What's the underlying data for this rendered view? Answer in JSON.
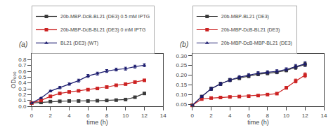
{
  "chart_data": [
    {
      "type": "line",
      "title": "(a)",
      "xlabel": "time (h)",
      "ylabel": "OD₆₀₀",
      "x": [
        0,
        1,
        2,
        3,
        4,
        5,
        6,
        7,
        8,
        9,
        10,
        11,
        12
      ],
      "xlim": [
        0,
        14
      ],
      "xticks": [
        0,
        2,
        4,
        6,
        8,
        10,
        12,
        14
      ],
      "ylim": [
        0,
        0.9
      ],
      "yticks": [
        {
          "value": 0,
          "label": "0.0"
        },
        0.1,
        0.2,
        0.3,
        0.4,
        0.5,
        0.6,
        0.7,
        0.8
      ],
      "grid": false,
      "legend": "upper left",
      "series": [
        {
          "name": "20b-MBP-DcB-BL21 (DE3) 0.5 mM IPTG",
          "color": "#3a3a3a",
          "marker": "square",
          "values": [
            0.055,
            0.065,
            0.08,
            0.085,
            0.09,
            0.09,
            0.09,
            0.095,
            0.1,
            0.105,
            0.115,
            0.155,
            0.22
          ],
          "error": [
            0.005,
            0.005,
            0.005,
            0.005,
            0.005,
            0.005,
            0.005,
            0.005,
            0.005,
            0.005,
            0.005,
            0.01,
            0.015
          ]
        },
        {
          "name": "20b-MBP-DcB-BL21 (DE3) 0 mM IPTG",
          "color": "#cc2222",
          "marker": "square",
          "values": [
            0.055,
            0.1,
            0.17,
            0.22,
            0.245,
            0.265,
            0.285,
            0.305,
            0.33,
            0.36,
            0.38,
            0.415,
            0.445
          ],
          "error": [
            0.005,
            0.008,
            0.01,
            0.012,
            0.012,
            0.012,
            0.012,
            0.012,
            0.015,
            0.015,
            0.015,
            0.015,
            0.015
          ]
        },
        {
          "name": "BL21 (DE3) (WT)",
          "color": "#1a1a6e",
          "marker": "triangle",
          "values": [
            0.055,
            0.14,
            0.26,
            0.32,
            0.38,
            0.44,
            0.52,
            0.56,
            0.605,
            0.63,
            0.645,
            0.68,
            0.705
          ],
          "error": [
            0.005,
            0.01,
            0.015,
            0.02,
            0.02,
            0.025,
            0.025,
            0.025,
            0.025,
            0.025,
            0.025,
            0.025,
            0.025
          ]
        }
      ]
    },
    {
      "type": "line",
      "title": "(b)",
      "xlabel": "time (h)",
      "x": [
        0,
        1,
        2,
        3,
        4,
        5,
        6,
        7,
        8,
        9,
        10,
        11,
        12
      ],
      "xlim": [
        0,
        14
      ],
      "xticks": [
        0,
        2,
        4,
        6,
        8,
        10,
        12,
        14
      ],
      "ylim": [
        0.04,
        0.31
      ],
      "yticks": [
        0.05,
        {
          "value": 0.1,
          "label": "0.10"
        },
        0.15,
        {
          "value": 0.2,
          "label": "0.20"
        },
        0.25,
        {
          "value": 0.3,
          "label": "0.30"
        }
      ],
      "grid": false,
      "legend": "upper left",
      "series": [
        {
          "name": "20b-MBP-BL21 (DE3)",
          "color": "#3a3a3a",
          "marker": "square",
          "values": [
            0.045,
            0.09,
            0.13,
            0.155,
            0.175,
            0.185,
            0.195,
            0.205,
            0.21,
            0.215,
            0.225,
            0.24,
            0.255
          ],
          "error": [
            0.003,
            0.005,
            0.008,
            0.008,
            0.008,
            0.008,
            0.008,
            0.008,
            0.008,
            0.008,
            0.008,
            0.01,
            0.01
          ]
        },
        {
          "name": "20b-MBP-DcB-BL21 (DE3)",
          "color": "#cc2222",
          "marker": "square",
          "values": [
            0.045,
            0.077,
            0.082,
            0.085,
            0.088,
            0.09,
            0.092,
            0.095,
            0.1,
            0.105,
            0.135,
            0.17,
            0.2
          ],
          "error": [
            0.003,
            0.004,
            0.004,
            0.004,
            0.004,
            0.004,
            0.004,
            0.004,
            0.004,
            0.005,
            0.007,
            0.01,
            0.012
          ]
        },
        {
          "name": "20b-MBP-DcB-MBP-BL21 (DE3)",
          "color": "#1a1a6e",
          "marker": "triangle",
          "values": [
            0.045,
            0.09,
            0.13,
            0.155,
            0.175,
            0.19,
            0.2,
            0.21,
            0.215,
            0.22,
            0.23,
            0.245,
            0.258
          ],
          "error": [
            0.003,
            0.005,
            0.008,
            0.008,
            0.008,
            0.008,
            0.008,
            0.008,
            0.008,
            0.008,
            0.008,
            0.01,
            0.012
          ]
        }
      ]
    }
  ]
}
